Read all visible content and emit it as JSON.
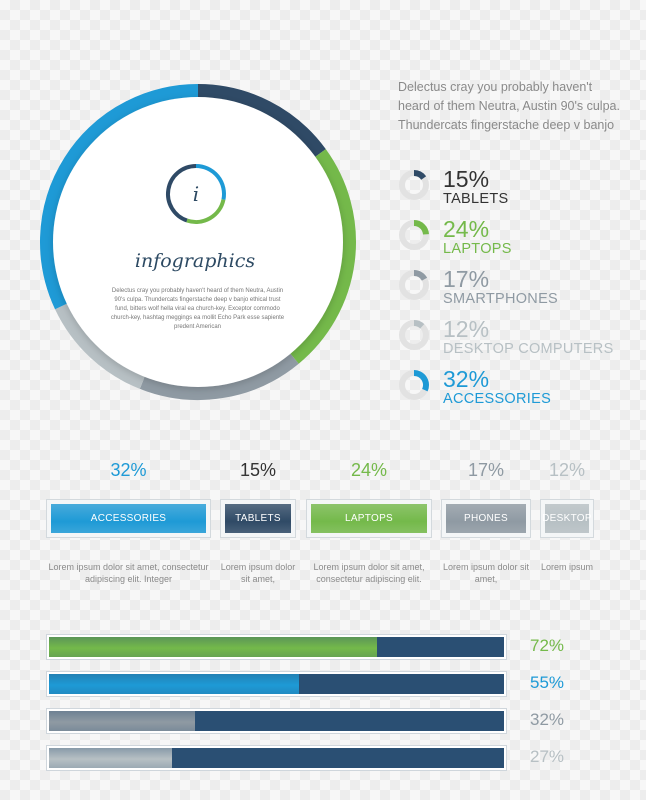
{
  "colors": {
    "navy": "#2a4f73",
    "dark_navy": "#2f4a66",
    "blue": "#1e9ad6",
    "green": "#74b94a",
    "gray": "#8f9aa3",
    "light_gray": "#b7c0c4",
    "text_dark": "#333333",
    "text_muted": "#8a8a8a"
  },
  "header": {
    "icon_letter": "i",
    "title": "infographics",
    "body": "Delectus cray you probably haven't heard of them Neutra, Austin 90's culpa. Thundercats fingerstache deep v banjo ethical trust fund, bitters wolf hella viral ea church-key. Exceptor commodo church-key, hashtag meggings ea mollit Echo Park esse sapiente predent American",
    "intro": "Delectus cray you probably haven't heard of them Neutra, Austin 90's culpa. Thundercats fingerstache deep v banjo"
  },
  "chart_data": [
    {
      "type": "pie",
      "categories": [
        "TABLETS",
        "LAPTOPS",
        "SMARTPHONES",
        "DESKTOP COMPUTERS",
        "ACCESSORIES"
      ],
      "values": [
        15,
        24,
        17,
        12,
        32
      ],
      "labels": [
        "15%",
        "24%",
        "17%",
        "12%",
        "32%"
      ],
      "colors": [
        "#2f4a66",
        "#74b94a",
        "#8f9aa3",
        "#b7c0c4",
        "#1e9ad6"
      ]
    },
    {
      "type": "bar",
      "categories": [
        "ACCESSORIES",
        "TABLETS",
        "LAPTOPS",
        "PHONES",
        "DESKTOP"
      ],
      "values": [
        32,
        15,
        24,
        17,
        12
      ],
      "labels": [
        "32%",
        "15%",
        "24%",
        "17%",
        "12%"
      ],
      "descriptions": [
        "Lorem ipsum dolor sit amet, consectetur adipiscing elit. Integer",
        "Lorem ipsum dolor sit amet,",
        "Lorem ipsum dolor sit amet, consectetur adipiscing elit.",
        "Lorem ipsum dolor sit amet,",
        "Lorem ipsum"
      ],
      "colors": [
        "#1e9ad6",
        "#2f4a66",
        "#74b94a",
        "#8f9aa3",
        "#b7c0c4"
      ]
    },
    {
      "type": "bar",
      "orientation": "horizontal",
      "values": [
        72,
        55,
        32,
        27
      ],
      "labels": [
        "72%",
        "55%",
        "32%",
        "27%"
      ],
      "colors": [
        "#74b94a",
        "#1e9ad6",
        "#8f9aa3",
        "#b7c0c4"
      ],
      "xlim": [
        0,
        100
      ]
    }
  ]
}
